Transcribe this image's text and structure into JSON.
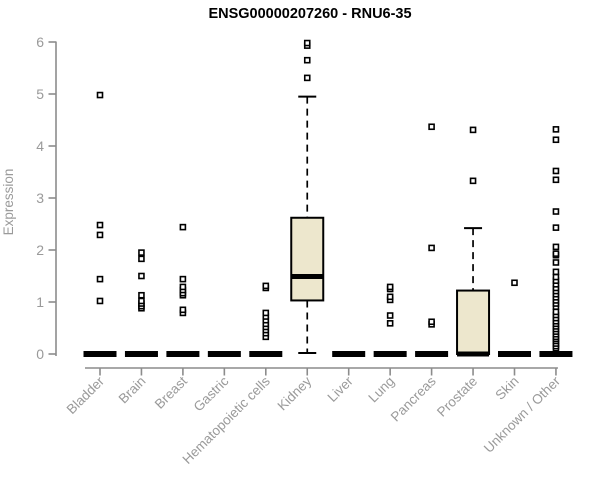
{
  "chart_data": {
    "type": "boxplot",
    "title": "ENSG00000207260 - RNU6-35",
    "ylabel": "Expression",
    "xlabel": "",
    "ylim": [
      0,
      6
    ],
    "yticks": [
      0,
      1,
      2,
      3,
      4,
      5,
      6
    ],
    "grid": false,
    "legend": "none",
    "colors": {
      "box_fill": "#ede7cd",
      "box_stroke": "#000000",
      "median": "#000000",
      "zero_bar": "#000000",
      "axis": "#8c8c8c",
      "tick_label": "#9a9a9a",
      "title": "#000000",
      "marker_stroke": "#000000",
      "marker_fill": "#ffffff"
    },
    "categories": [
      {
        "label": "Bladder",
        "box": {
          "q1": 0,
          "median": 0,
          "q3": 0,
          "whisker_low": 0,
          "whisker_high": 0
        },
        "outliers": [
          1.02,
          1.44,
          2.29,
          2.48,
          4.98
        ]
      },
      {
        "label": "Brain",
        "box": {
          "q1": 0,
          "median": 0,
          "q3": 0,
          "whisker_low": 0,
          "whisker_high": 0
        },
        "outliers": [
          0.88,
          0.92,
          0.97,
          1.02,
          1.13,
          1.5,
          1.83,
          1.95
        ]
      },
      {
        "label": "Breast",
        "box": {
          "q1": 0,
          "median": 0,
          "q3": 0,
          "whisker_low": 0,
          "whisker_high": 0
        },
        "outliers": [
          0.79,
          0.85,
          1.13,
          1.17,
          1.23,
          1.29,
          1.44,
          2.44
        ]
      },
      {
        "label": "Gastric",
        "box": {
          "q1": 0,
          "median": 0,
          "q3": 0,
          "whisker_low": 0,
          "whisker_high": 0
        },
        "outliers": []
      },
      {
        "label": "Hematopoietic cells",
        "box": {
          "q1": 0,
          "median": 0,
          "q3": 0,
          "whisker_low": 0,
          "whisker_high": 0
        },
        "outliers": [
          0.33,
          0.4,
          0.46,
          0.52,
          0.58,
          0.65,
          0.72,
          0.79,
          1.27,
          1.31
        ]
      },
      {
        "label": "Kidney",
        "box": {
          "q1": 1.03,
          "median": 1.49,
          "q3": 2.62,
          "whisker_low": 0.02,
          "whisker_high": 4.95
        },
        "outliers": [
          5.31,
          5.65,
          5.93,
          5.98
        ]
      },
      {
        "label": "Liver",
        "box": {
          "q1": 0,
          "median": 0,
          "q3": 0,
          "whisker_low": 0,
          "whisker_high": 0
        },
        "outliers": []
      },
      {
        "label": "Lung",
        "box": {
          "q1": 0,
          "median": 0,
          "q3": 0,
          "whisker_low": 0,
          "whisker_high": 0
        },
        "outliers": [
          0.59,
          0.74,
          1.04,
          1.1,
          1.25,
          1.29
        ]
      },
      {
        "label": "Pancreas",
        "box": {
          "q1": 0,
          "median": 0,
          "q3": 0,
          "whisker_low": 0,
          "whisker_high": 0
        },
        "outliers": [
          0.57,
          0.62,
          2.04,
          4.37
        ]
      },
      {
        "label": "Prostate",
        "box": {
          "q1": 0,
          "median": 0,
          "q3": 1.22,
          "whisker_low": 0,
          "whisker_high": 2.42
        },
        "outliers": [
          3.33,
          4.31
        ]
      },
      {
        "label": "Skin",
        "box": {
          "q1": 0,
          "median": 0,
          "q3": 0,
          "whisker_low": 0,
          "whisker_high": 0
        },
        "outliers": [
          1.37
        ]
      },
      {
        "label": "Unknown / Other",
        "box": {
          "q1": 0,
          "median": 0,
          "q3": 0,
          "whisker_low": 0,
          "whisker_high": 0
        },
        "outliers": [
          0.11,
          0.15,
          0.2,
          0.25,
          0.29,
          0.33,
          0.38,
          0.43,
          0.48,
          0.53,
          0.58,
          0.63,
          0.69,
          0.75,
          0.81,
          0.91,
          0.97,
          1.03,
          1.09,
          1.15,
          1.21,
          1.27,
          1.34,
          1.41,
          1.48,
          1.58,
          1.76,
          1.9,
          1.93,
          2.06,
          2.43,
          2.74,
          3.35,
          3.52,
          4.12,
          4.32
        ]
      }
    ]
  }
}
